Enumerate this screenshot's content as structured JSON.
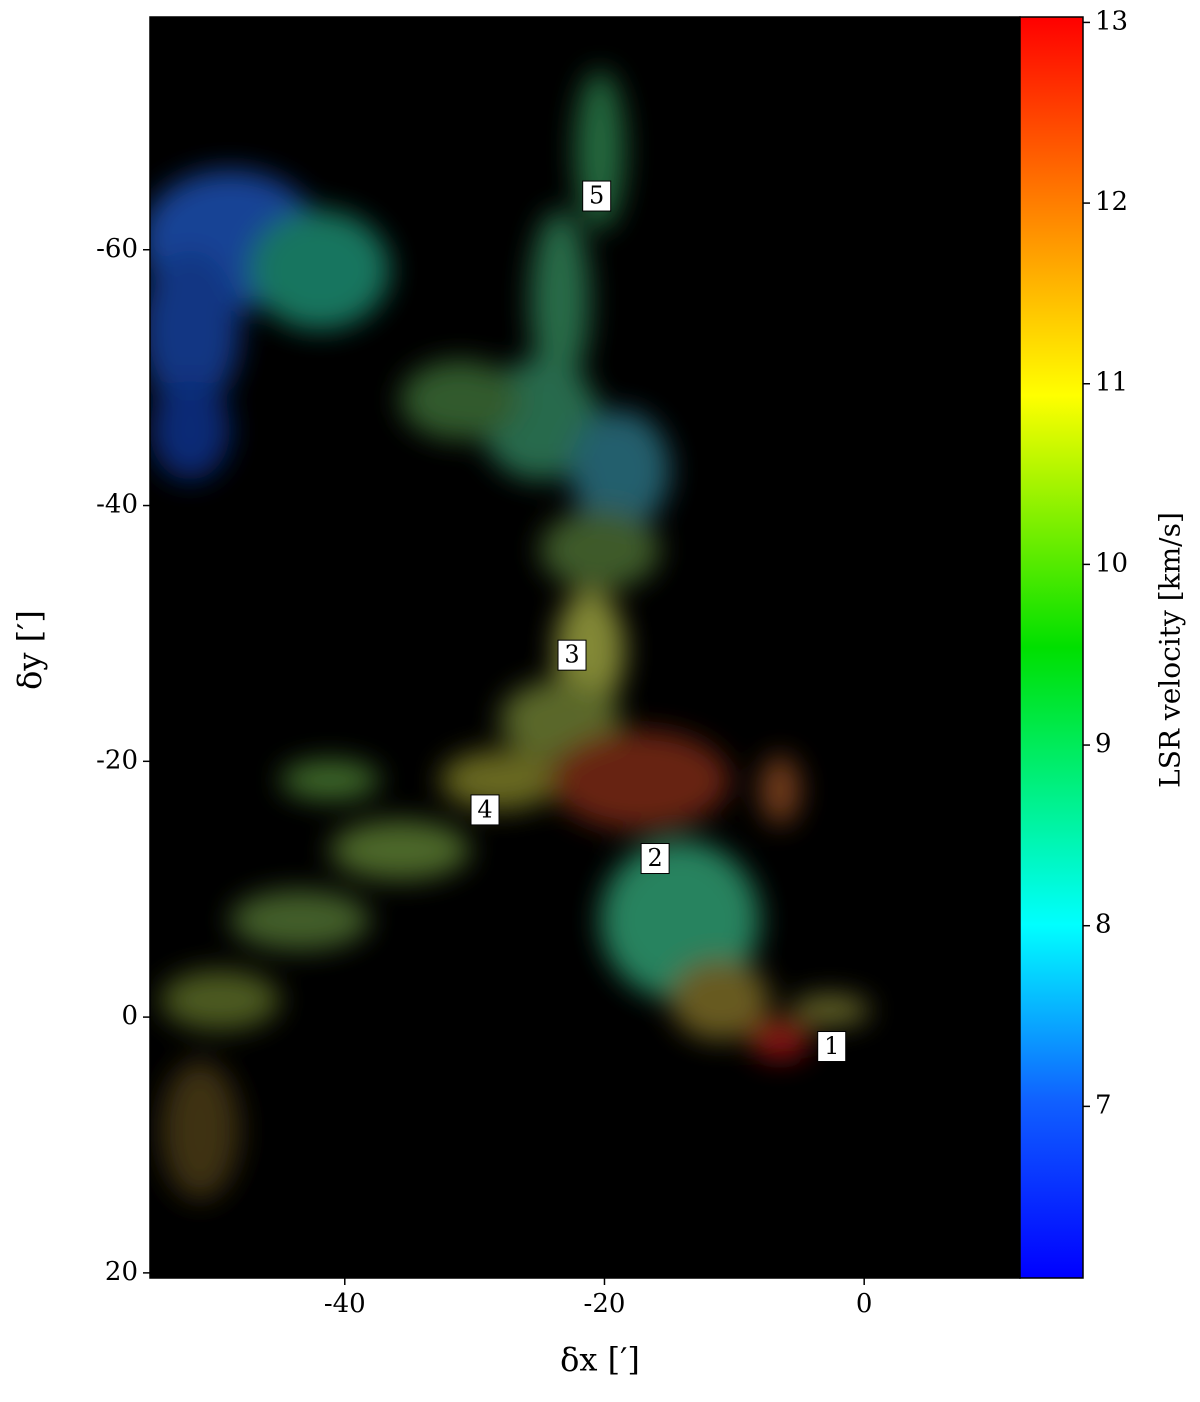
{
  "chart_data": {
    "type": "image",
    "x_label": "δx [′]",
    "y_label": "δy [′]",
    "xlim": [
      -55,
      12
    ],
    "xticks": [
      -40,
      -20,
      0
    ],
    "ylim": [
      20.4,
      -78.2
    ],
    "yticks": [
      -60,
      -40,
      -20,
      0,
      20
    ],
    "colorbar": {
      "label": "LSR velocity [km/s]",
      "lim": [
        6.05,
        13.03
      ],
      "ticks": [
        7,
        8,
        9,
        10,
        11,
        12,
        13
      ]
    },
    "annotations": [
      {
        "text": "1",
        "x": -2.5,
        "y": 2.3
      },
      {
        "text": "2",
        "x": -16.1,
        "y": -12.4
      },
      {
        "text": "3",
        "x": -22.5,
        "y": -28.3
      },
      {
        "text": "4",
        "x": -29.2,
        "y": -16.2
      },
      {
        "text": "5",
        "x": -20.6,
        "y": -64.2
      }
    ]
  }
}
